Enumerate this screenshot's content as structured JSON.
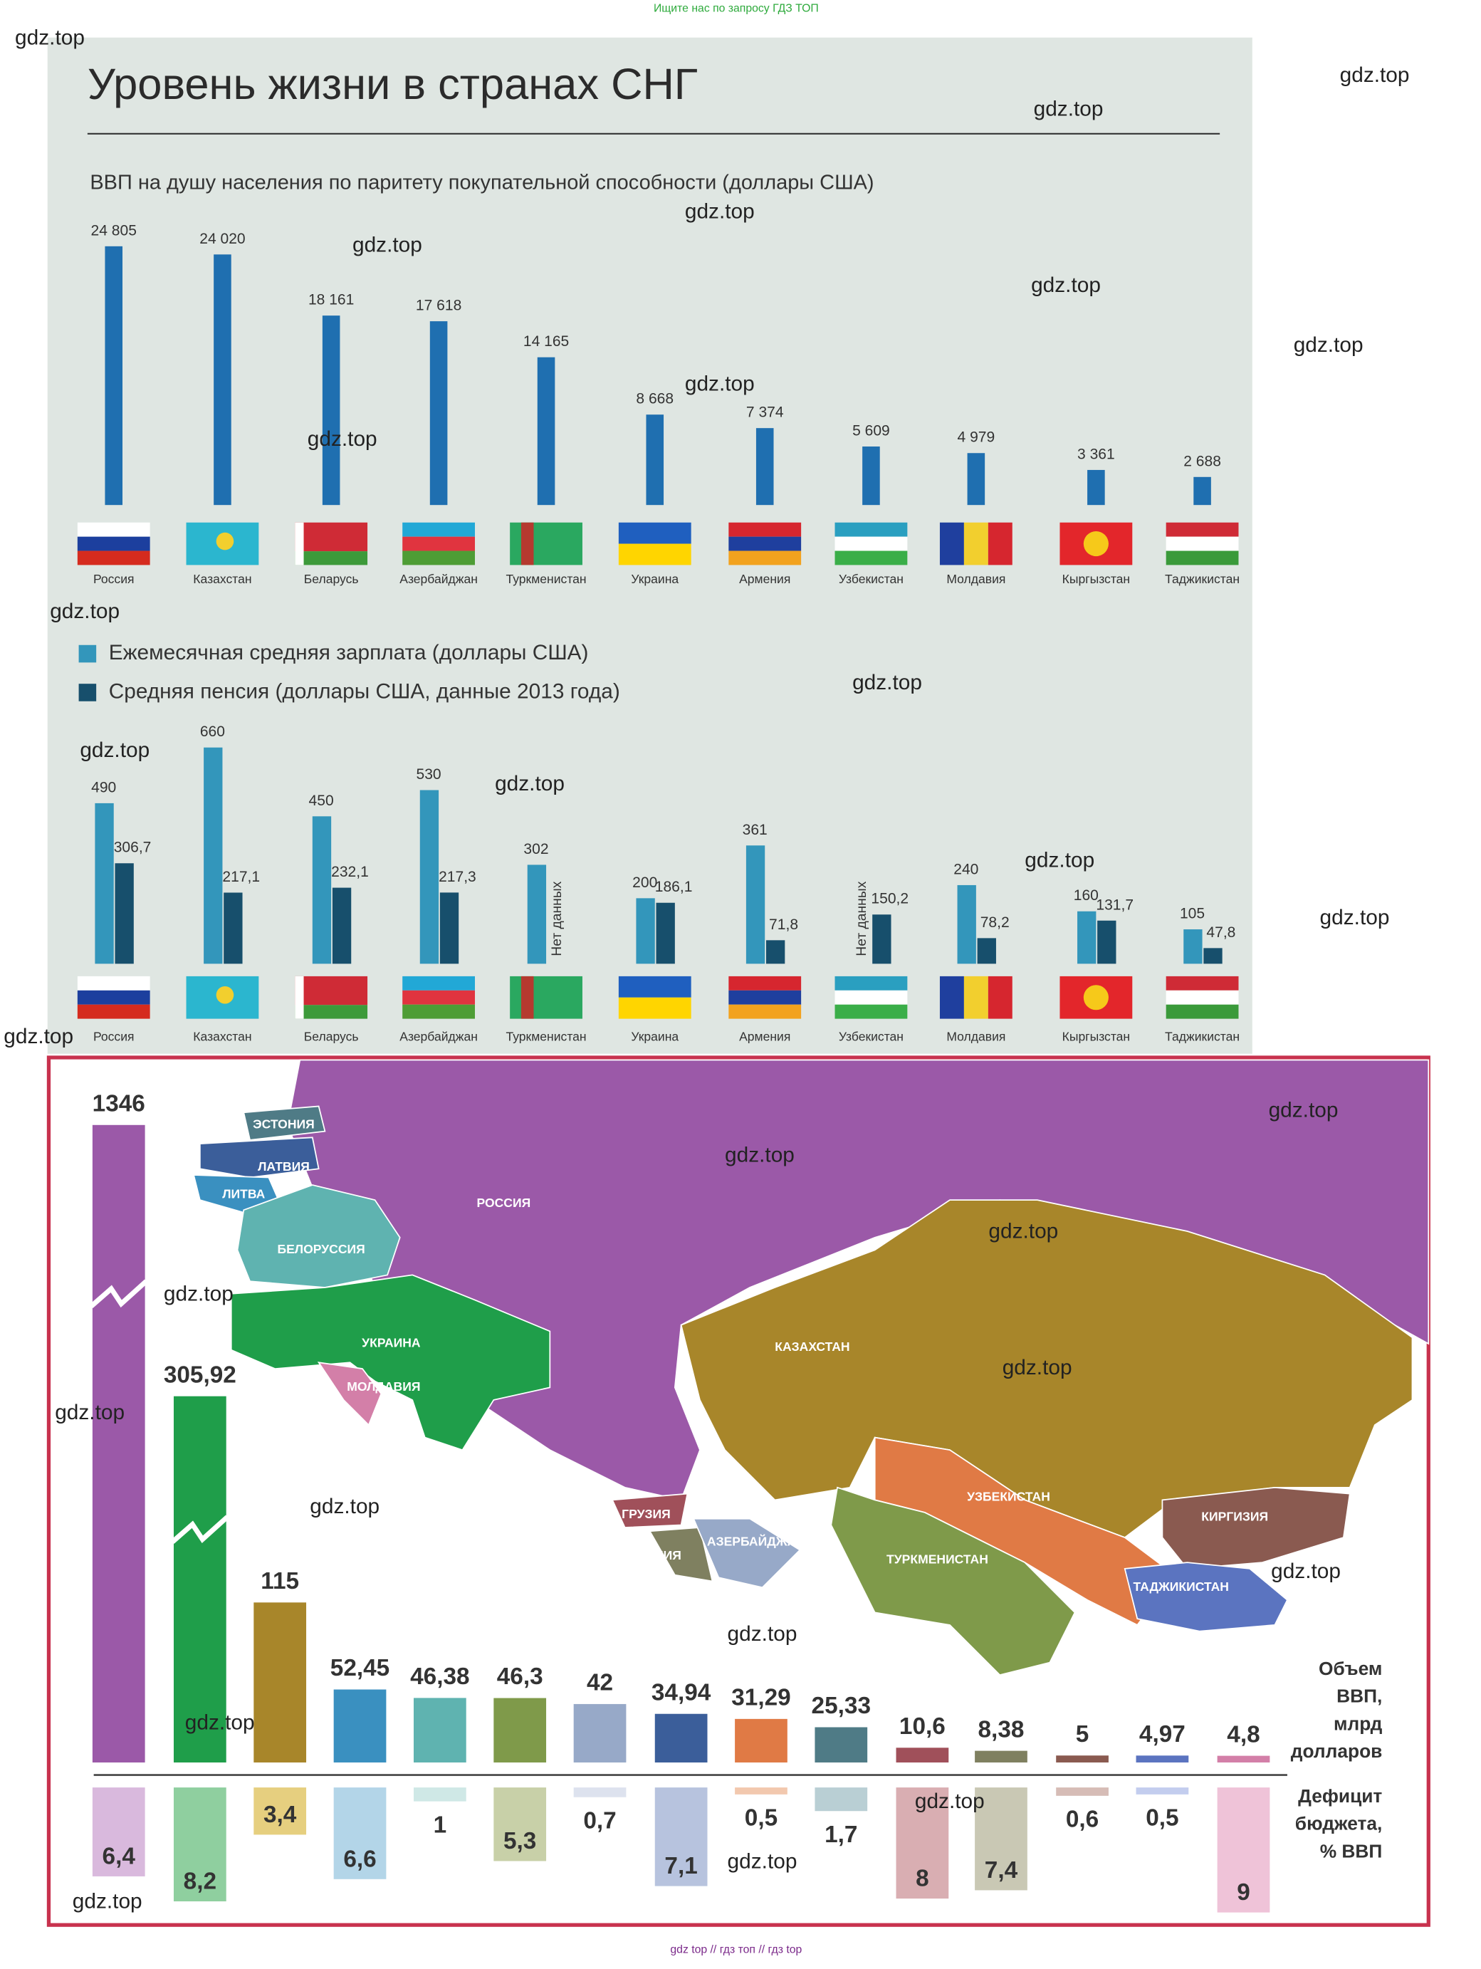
{
  "header": "Ищите нас по запросу ГДЗ ТОП",
  "footer": "gdz top  //  гдз топ  //  гдз top",
  "watermark": "gdz.top",
  "title": "Уровень жизни в странах СНГ",
  "map": {
    "labels": [
      "ЭСТОНИЯ",
      "ЛАТВИЯ",
      "ЛИТВА",
      "БЕЛОРУССИЯ",
      "РОССИЯ",
      "УКРАИНА",
      "МОЛДАВИЯ",
      "КАЗАХСТАН",
      "ГРУЗИЯ",
      "АРМЕНИЯ",
      "АЗЕРБАЙДЖАН",
      "УЗБЕКИСТАН",
      "ТУРКМЕНИСТАН",
      "КИРГИЗИЯ",
      "ТАДЖИКИСТАН"
    ]
  },
  "chart_data": [
    {
      "type": "bar",
      "title": "ВВП на душу населения по паритету покупательной способности (доллары США)",
      "categories": [
        "Россия",
        "Казахстан",
        "Беларусь",
        "Азербайджан",
        "Туркменистан",
        "Украина",
        "Армения",
        "Узбекистан",
        "Молдавия",
        "Кыргызстан",
        "Таджикистан"
      ],
      "values": [
        24805,
        24020,
        18161,
        17618,
        14165,
        8668,
        7374,
        5609,
        4979,
        3361,
        2688
      ],
      "value_labels": [
        "24 805",
        "24 020",
        "18 161",
        "17 618",
        "14 165",
        "8 668",
        "7 374",
        "5 609",
        "4 979",
        "3 361",
        "2 688"
      ],
      "color": "#1f6fb0"
    },
    {
      "type": "bar",
      "categories": [
        "Россия",
        "Казахстан",
        "Беларусь",
        "Азербайджан",
        "Туркменистан",
        "Украина",
        "Армения",
        "Узбекистан",
        "Молдавия",
        "Кыргызстан",
        "Таджикистан"
      ],
      "series": [
        {
          "name": "Ежемесячная средняя зарплата (доллары США)",
          "color": "#3396bb",
          "values": [
            490,
            660,
            450,
            530,
            302,
            200,
            361,
            null,
            240,
            160,
            105
          ],
          "value_labels": [
            "490",
            "660",
            "450",
            "530",
            "302",
            "200",
            "361",
            null,
            "240",
            "160",
            "105"
          ]
        },
        {
          "name": "Средняя пенсия (доллары США, данные 2013 года)",
          "color": "#174f6c",
          "values": [
            306.7,
            217.1,
            232.1,
            217.3,
            null,
            186.1,
            71.8,
            150.2,
            78.2,
            131.7,
            47.8
          ],
          "value_labels": [
            "306,7",
            "217,1",
            "232,1",
            "217,3",
            null,
            "186,1",
            "71,8",
            "150,2",
            "78,2",
            "131,7",
            "47,8"
          ]
        }
      ],
      "annotation": "Нет данных"
    },
    {
      "type": "bar",
      "y_label": [
        "Объем",
        "ВВП,",
        "млрд",
        "долларов"
      ],
      "values": [
        1346,
        305.92,
        115,
        52.45,
        46.38,
        46.3,
        42,
        34.94,
        31.29,
        25.33,
        10.6,
        8.38,
        5,
        4.97,
        4.8
      ],
      "value_labels": [
        "1346",
        "305,92",
        "115",
        "52,45",
        "46,38",
        "46,3",
        "42",
        "34,94",
        "31,29",
        "25,33",
        "10,6",
        "8,38",
        "5",
        "4,97",
        "4,8"
      ],
      "colors": [
        "#9b59a8",
        "#1f9e4a",
        "#a8862a",
        "#3a90c0",
        "#5fb3b0",
        "#7f9a4a",
        "#97a9c8",
        "#3b5e9a",
        "#e07a45",
        "#4f7b86",
        "#a0505a",
        "#7f8060",
        "#8a5a50",
        "#5b74c0",
        "#d37fa8"
      ]
    },
    {
      "type": "bar",
      "y_label": [
        "Дефицит",
        "бюджета,",
        "% ВВП"
      ],
      "values": [
        6.4,
        8.2,
        3.4,
        6.6,
        1,
        5.3,
        0.7,
        7.1,
        0.5,
        1.7,
        8,
        7.4,
        0.6,
        0.5,
        9
      ],
      "value_labels": [
        "6,4",
        "8,2",
        "3,4",
        "6,6",
        "1",
        "5,3",
        "0,7",
        "7,1",
        "0,5",
        "1,7",
        "8",
        "7,4",
        "0,6",
        "0,5",
        "9"
      ],
      "colors": [
        "#d9b9dd",
        "#8fcf9f",
        "#e6cf7f",
        "#b3d5e8",
        "#cfe8e6",
        "#c8d0a8",
        "#dde2ee",
        "#b7c3de",
        "#f2c8ae",
        "#b9cfd4",
        "#d9aeb2",
        "#c9c8b4",
        "#d6bcb6",
        "#c3cdee",
        "#efc3d8"
      ]
    }
  ]
}
